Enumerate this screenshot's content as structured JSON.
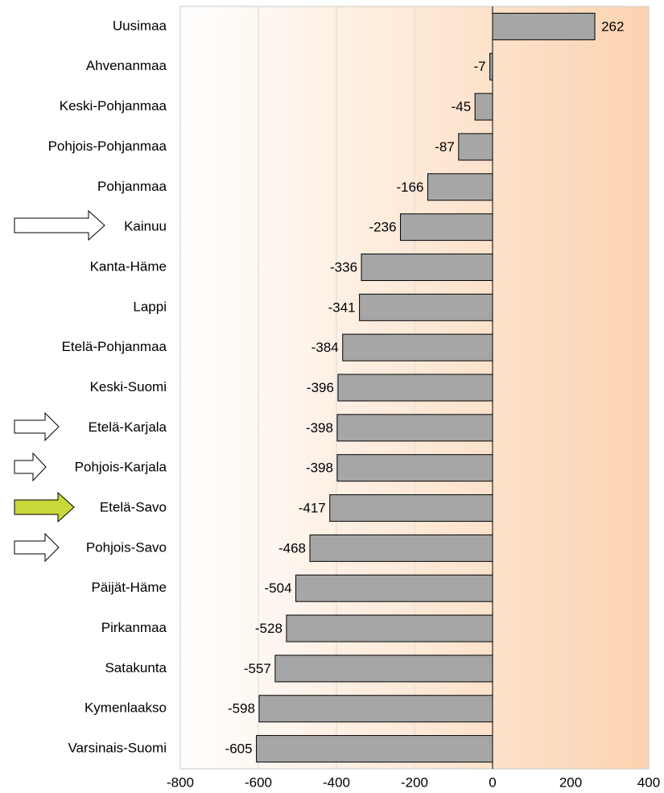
{
  "chart_data": {
    "type": "bar",
    "orientation": "horizontal",
    "categories": [
      "Uusimaa",
      "Ahvenanmaa",
      "Keski-Pohjanmaa",
      "Pohjois-Pohjanmaa",
      "Pohjanmaa",
      "Kainuu",
      "Kanta-Häme",
      "Lappi",
      "Etelä-Pohjanmaa",
      "Keski-Suomi",
      "Etelä-Karjala",
      "Pohjois-Karjala",
      "Etelä-Savo",
      "Pohjois-Savo",
      "Päijät-Häme",
      "Pirkanmaa",
      "Satakunta",
      "Kymenlaakso",
      "Varsinais-Suomi"
    ],
    "values": [
      262,
      -7,
      -45,
      -87,
      -166,
      -236,
      -336,
      -341,
      -384,
      -396,
      -398,
      -398,
      -417,
      -468,
      -504,
      -528,
      -557,
      -598,
      -605
    ],
    "color": "#a6a6a6",
    "xlim": [
      -800,
      400
    ],
    "xticks": [
      -800,
      -600,
      -400,
      -200,
      0,
      200,
      400
    ],
    "grid": true
  }
}
